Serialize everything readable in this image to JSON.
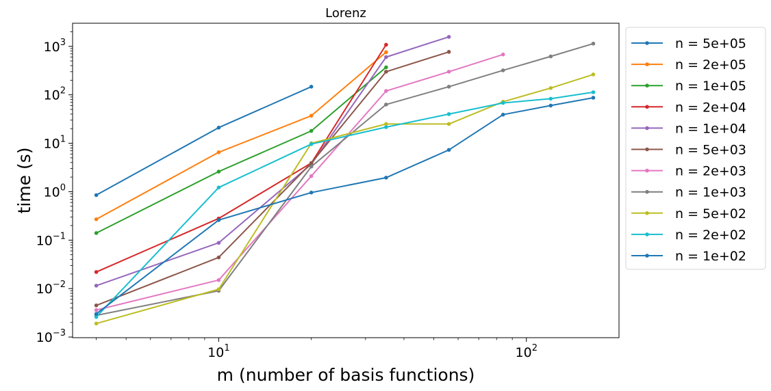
{
  "chart_data": {
    "type": "line",
    "title": "Lorenz",
    "xlabel": "m (number of basis functions)",
    "ylabel": "time (s)",
    "xscale": "log",
    "yscale": "log",
    "xlim": [
      3.35,
      200
    ],
    "ylim": [
      0.00097,
      3000
    ],
    "xticks": [
      {
        "value": 10,
        "base": "10",
        "exp": "1"
      },
      {
        "value": 100,
        "base": "10",
        "exp": "2"
      }
    ],
    "yticks": [
      {
        "value": 0.001,
        "base": "10",
        "exp": "−3"
      },
      {
        "value": 0.01,
        "base": "10",
        "exp": "−2"
      },
      {
        "value": 0.1,
        "base": "10",
        "exp": "−1"
      },
      {
        "value": 1,
        "base": "10",
        "exp": "0"
      },
      {
        "value": 10,
        "base": "10",
        "exp": "1"
      },
      {
        "value": 100,
        "base": "10",
        "exp": "2"
      },
      {
        "value": 1000,
        "base": "10",
        "exp": "3"
      }
    ],
    "grid": false,
    "legend_position": "outside-right",
    "series": [
      {
        "name": "n = 5e+05",
        "color": "#1f77b4",
        "x": [
          4,
          10,
          20
        ],
        "y": [
          0.85,
          21,
          147
        ]
      },
      {
        "name": "n = 2e+05",
        "color": "#ff7f0e",
        "x": [
          4,
          10,
          20,
          35
        ],
        "y": [
          0.27,
          6.5,
          37,
          760
        ]
      },
      {
        "name": "n = 1e+05",
        "color": "#2ca02c",
        "x": [
          4,
          10,
          20,
          35
        ],
        "y": [
          0.14,
          2.6,
          18,
          370
        ]
      },
      {
        "name": "n = 2e+04",
        "color": "#d62728",
        "x": [
          4,
          10,
          20,
          35
        ],
        "y": [
          0.022,
          0.28,
          3.9,
          1080
        ]
      },
      {
        "name": "n = 1e+04",
        "color": "#9467bd",
        "x": [
          4,
          10,
          20,
          35,
          56
        ],
        "y": [
          0.0115,
          0.088,
          3.7,
          600,
          1570
        ]
      },
      {
        "name": "n = 5e+03",
        "color": "#8c564b",
        "x": [
          4,
          10,
          20,
          35,
          56
        ],
        "y": [
          0.0045,
          0.044,
          3.9,
          300,
          770
        ]
      },
      {
        "name": "n = 2e+03",
        "color": "#e377c2",
        "x": [
          4,
          10,
          20,
          35,
          56,
          84
        ],
        "y": [
          0.0036,
          0.015,
          2.1,
          120,
          300,
          680
        ]
      },
      {
        "name": "n = 1e+03",
        "color": "#7f7f7f",
        "x": [
          4,
          10,
          20,
          35,
          56,
          84,
          120,
          165
        ],
        "y": [
          0.0028,
          0.009,
          3.3,
          63,
          147,
          320,
          620,
          1140
        ]
      },
      {
        "name": "n = 5e+02",
        "color": "#bcbd22",
        "x": [
          4,
          10,
          20,
          35,
          56,
          84,
          120,
          165
        ],
        "y": [
          0.0019,
          0.0097,
          10,
          25,
          25,
          72,
          138,
          263
        ]
      },
      {
        "name": "n = 2e+02",
        "color": "#17becf",
        "x": [
          4,
          10,
          20,
          35,
          56,
          84,
          120,
          165
        ],
        "y": [
          0.0026,
          1.22,
          9.6,
          21.5,
          40,
          68,
          83,
          113
        ]
      },
      {
        "name": "n = 1e+02",
        "color": "#1f77b4",
        "x": [
          4,
          10,
          20,
          35,
          56,
          84,
          120,
          165
        ],
        "y": [
          0.003,
          0.26,
          0.96,
          1.95,
          7.3,
          39,
          60,
          87
        ]
      }
    ]
  }
}
